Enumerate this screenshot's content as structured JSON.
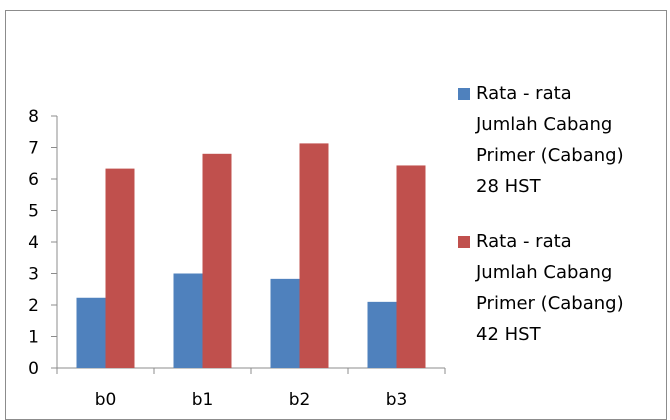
{
  "chart_data": {
    "type": "bar",
    "categories": [
      "b0",
      "b1",
      "b2",
      "b3"
    ],
    "series": [
      {
        "name": "Rata - rata Jumlah Cabang Primer (Cabang) 28 HST",
        "name_lines": [
          "Rata - rata",
          "Jumlah Cabang",
          "Primer (Cabang)",
          "28 HST"
        ],
        "color": "#4f81bd",
        "values": [
          2.23,
          3.0,
          2.83,
          2.1
        ]
      },
      {
        "name": "Rata - rata Jumlah Cabang Primer (Cabang) 42 HST",
        "name_lines": [
          "Rata - rata",
          "Jumlah Cabang",
          "Primer (Cabang)",
          "42 HST"
        ],
        "color": "#c0504d",
        "values": [
          6.33,
          6.8,
          7.13,
          6.43
        ]
      }
    ],
    "y_ticks": [
      "0",
      "1",
      "2",
      "3",
      "4",
      "5",
      "6",
      "7",
      "8"
    ],
    "ylim": [
      0,
      8
    ],
    "title": "",
    "xlabel": "",
    "ylabel": "",
    "grid": false,
    "legend_position": "right"
  }
}
